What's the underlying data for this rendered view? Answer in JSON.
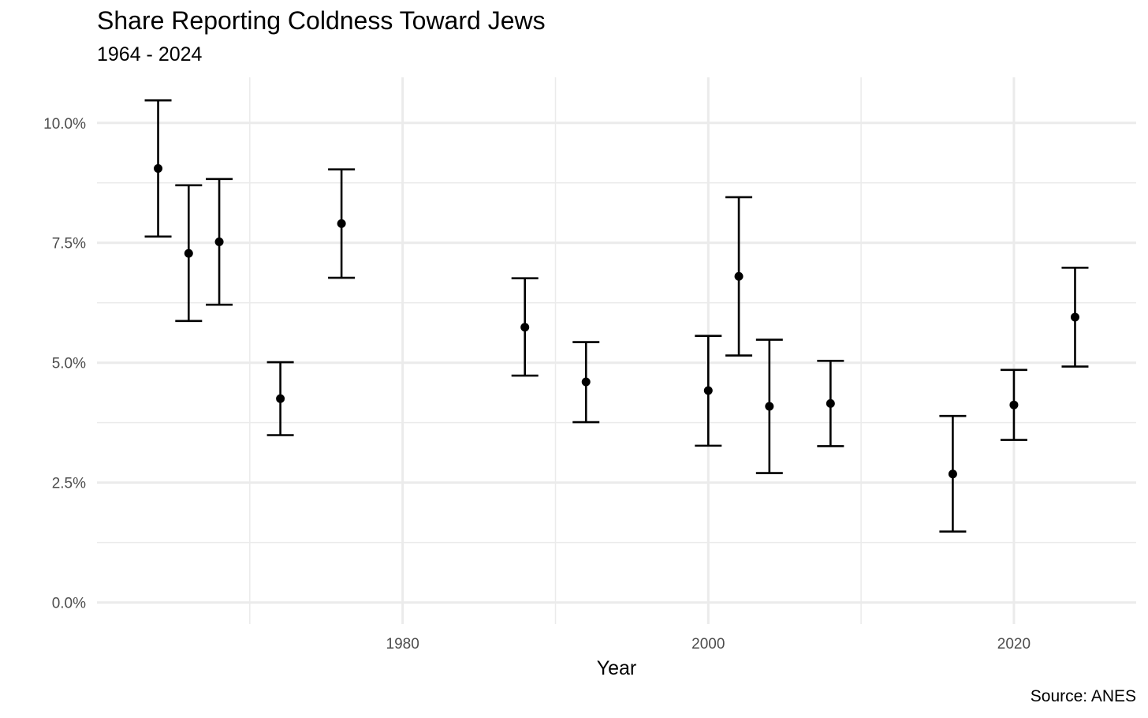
{
  "chart_data": {
    "type": "scatter",
    "title": "Share Reporting Coldness Toward Jews",
    "subtitle": "1964 - 2024",
    "xlabel": "Year",
    "ylabel": "",
    "caption": "Source: ANES",
    "xlim": [
      1960.0,
      2028.0
    ],
    "ylim": [
      -0.45,
      10.95
    ],
    "x_ticks": [
      1980,
      2000,
      2020
    ],
    "x_tick_labels": [
      "1980",
      "2000",
      "2020"
    ],
    "y_ticks": [
      0,
      2.5,
      5.0,
      7.5,
      10.0
    ],
    "y_tick_labels": [
      "0.0%",
      "2.5%",
      "5.0%",
      "7.5%",
      "10.0%"
    ],
    "grid": true,
    "legend": "none",
    "series": [
      {
        "points": [
          {
            "x": 1964,
            "y": 9.05,
            "lower": 7.63,
            "upper": 10.47
          },
          {
            "x": 1966,
            "y": 7.28,
            "lower": 5.87,
            "upper": 8.7
          },
          {
            "x": 1968,
            "y": 7.52,
            "lower": 6.21,
            "upper": 8.83
          },
          {
            "x": 1972,
            "y": 4.25,
            "lower": 3.49,
            "upper": 5.01
          },
          {
            "x": 1976,
            "y": 7.9,
            "lower": 6.77,
            "upper": 9.03
          },
          {
            "x": 1988,
            "y": 5.74,
            "lower": 4.73,
            "upper": 6.76
          },
          {
            "x": 1992,
            "y": 4.6,
            "lower": 3.76,
            "upper": 5.43
          },
          {
            "x": 2000,
            "y": 4.42,
            "lower": 3.27,
            "upper": 5.56
          },
          {
            "x": 2002,
            "y": 6.8,
            "lower": 5.15,
            "upper": 8.45
          },
          {
            "x": 2004,
            "y": 4.09,
            "lower": 2.7,
            "upper": 5.48
          },
          {
            "x": 2008,
            "y": 4.15,
            "lower": 3.26,
            "upper": 5.04
          },
          {
            "x": 2016,
            "y": 2.68,
            "lower": 1.48,
            "upper": 3.89
          },
          {
            "x": 2020,
            "y": 4.12,
            "lower": 3.39,
            "upper": 4.85
          },
          {
            "x": 2024,
            "y": 5.95,
            "lower": 4.92,
            "upper": 6.98
          }
        ]
      }
    ],
    "colors": {
      "grid": "#ebebeb",
      "marks": "#000000",
      "tick_text": "#4d4d4d"
    }
  }
}
